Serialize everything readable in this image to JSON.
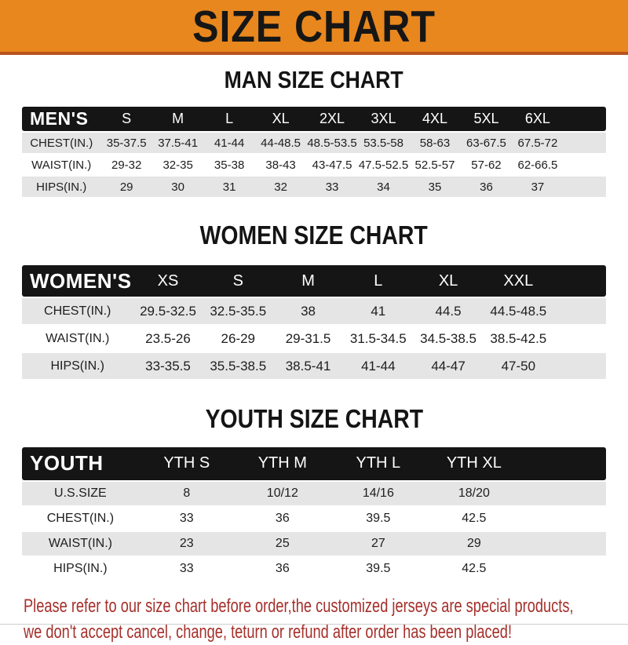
{
  "banner": {
    "title": "SIZE CHART"
  },
  "colors": {
    "banner_bg": "#E8871E",
    "banner_border": "#B9541D",
    "header_bar": "#151515",
    "row_alt": "#E5E5E5",
    "footer_text": "#A5302B"
  },
  "chart_data": [
    {
      "type": "table",
      "title": "MAN SIZE CHART",
      "header": [
        "MEN'S",
        "S",
        "M",
        "L",
        "XL",
        "2XL",
        "3XL",
        "4XL",
        "5XL",
        "6XL"
      ],
      "rows": [
        [
          "CHEST(IN.)",
          "35-37.5",
          "37.5-41",
          "41-44",
          "44-48.5",
          "48.5-53.5",
          "53.5-58",
          "58-63",
          "63-67.5",
          "67.5-72"
        ],
        [
          "WAIST(IN.)",
          "29-32",
          "32-35",
          "35-38",
          "38-43",
          "43-47.5",
          "47.5-52.5",
          "52.5-57",
          "57-62",
          "62-66.5"
        ],
        [
          "HIPS(IN.)",
          "29",
          "30",
          "31",
          "32",
          "33",
          "34",
          "35",
          "36",
          "37"
        ]
      ]
    },
    {
      "type": "table",
      "title": "WOMEN SIZE CHART",
      "header": [
        "WOMEN'S",
        "XS",
        "S",
        "M",
        "L",
        "XL",
        "XXL"
      ],
      "rows": [
        [
          "CHEST(IN.)",
          "29.5-32.5",
          "32.5-35.5",
          "38",
          "41",
          "44.5",
          "44.5-48.5"
        ],
        [
          "WAIST(IN.)",
          "23.5-26",
          "26-29",
          "29-31.5",
          "31.5-34.5",
          "34.5-38.5",
          "38.5-42.5"
        ],
        [
          "HIPS(IN.)",
          "33-35.5",
          "35.5-38.5",
          "38.5-41",
          "41-44",
          "44-47",
          "47-50"
        ]
      ]
    },
    {
      "type": "table",
      "title": "YOUTH SIZE CHART",
      "header": [
        "YOUTH",
        "YTH S",
        "YTH M",
        "YTH L",
        "YTH XL"
      ],
      "rows": [
        [
          "U.S.SIZE",
          "8",
          "10/12",
          "14/16",
          "18/20"
        ],
        [
          "CHEST(IN.)",
          "33",
          "36",
          "39.5",
          "42.5"
        ],
        [
          "WAIST(IN.)",
          "23",
          "25",
          "27",
          "29"
        ],
        [
          "HIPS(IN.)",
          "33",
          "36",
          "39.5",
          "42.5"
        ]
      ]
    }
  ],
  "footer": {
    "line1": "Please refer to our size chart before order,the customized jerseys are special products,",
    "line2": "we don't accept cancel, change, teturn or refund after order has been placed!"
  }
}
